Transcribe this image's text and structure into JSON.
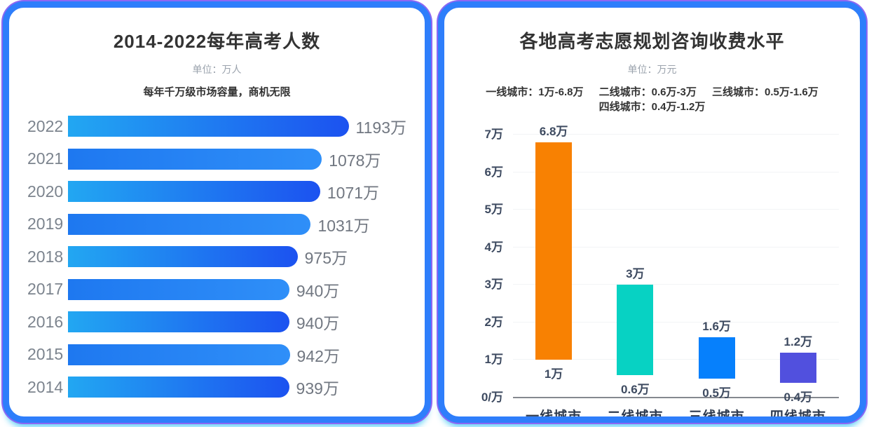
{
  "left_panel": {
    "title": "2014-2022每年高考人数",
    "unit": "单位：万人",
    "subtitle": "每年千万级市场容量，商机无限"
  },
  "right_panel": {
    "title": "各地高考志愿规划咨询收费水平",
    "unit": "单位：万元"
  },
  "colors": {
    "card_border_blue": "#2e7efb",
    "card_edge_purple": "#8d67f3",
    "card_glow_cyan": "#42c8f5",
    "hbar_gradient_a": [
      "#22a7f2",
      "#1c52f0"
    ],
    "hbar_gradient_b": [
      "#1e78f0",
      "#2f8ff8"
    ],
    "tick_text": "#3d4a60",
    "axis_line": "#85888f"
  },
  "chart_data": [
    {
      "type": "bar",
      "orientation": "horizontal",
      "title": "2014-2022每年高考人数",
      "unit": "单位：万人",
      "subtitle": "每年千万级市场容量，商机无限",
      "categories": [
        "2022",
        "2021",
        "2020",
        "2019",
        "2018",
        "2017",
        "2016",
        "2015",
        "2014"
      ],
      "values": [
        1193,
        1078,
        1071,
        1031,
        975,
        940,
        940,
        942,
        939
      ],
      "value_labels": [
        "1193万",
        "1078万",
        "1071万",
        "1031万",
        "975万",
        "940万",
        "940万",
        "942万",
        "939万"
      ],
      "xlim": [
        0,
        1193
      ],
      "grid": false,
      "legend_position": "none"
    },
    {
      "type": "bar",
      "subtype": "range",
      "title": "各地高考志愿规划咨询收费水平",
      "unit": "单位：万元",
      "range_items": [
        "一线城市：1万-6.8万",
        "二线城市：0.6万-3万",
        "三线城市：0.5万-1.6万",
        "四线城市：0.4万-1.2万"
      ],
      "categories": [
        "一线城市",
        "二线城市",
        "三线城市",
        "四线城市"
      ],
      "series": [
        {
          "name": "min",
          "values": [
            1,
            0.6,
            0.5,
            0.4
          ]
        },
        {
          "name": "max",
          "values": [
            6.8,
            3,
            1.6,
            1.2
          ]
        }
      ],
      "min_labels": [
        "1万",
        "0.6万",
        "0.5万",
        "0.4万"
      ],
      "max_labels": [
        "6.8万",
        "3万",
        "1.6万",
        "1.2万"
      ],
      "bar_colors": [
        "#f88102",
        "#07d2c3",
        "#0680fc",
        "#5150de"
      ],
      "ylim": [
        0,
        7
      ],
      "yticks": [
        {
          "value": 7,
          "label": "7万"
        },
        {
          "value": 6,
          "label": "6万"
        },
        {
          "value": 5,
          "label": "5万"
        },
        {
          "value": 4,
          "label": "4万"
        },
        {
          "value": 3,
          "label": "3万"
        },
        {
          "value": 2,
          "label": "2万"
        },
        {
          "value": 1,
          "label": "1万"
        },
        {
          "value": 0,
          "label": "0/万"
        }
      ],
      "grid": true,
      "legend_position": "none"
    }
  ]
}
